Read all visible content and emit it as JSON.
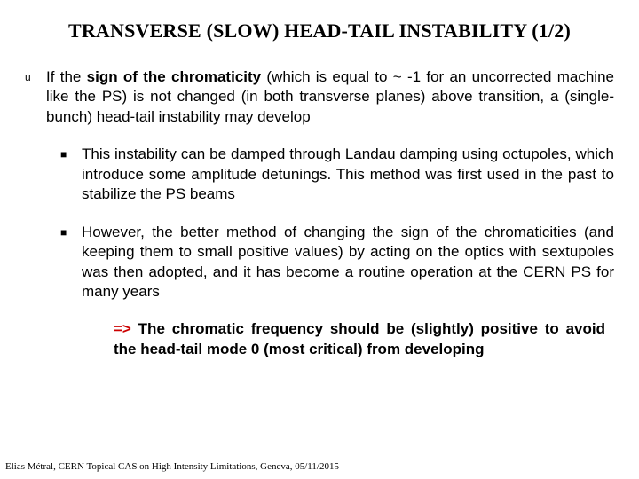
{
  "title": "TRANSVERSE (SLOW) HEAD-TAIL INSTABILITY (1/2)",
  "main": {
    "bullet_glyph": "u",
    "pre": "If the ",
    "bold": "sign of the chromaticity",
    "post": " (which is equal to ~ -1 for an uncorrected machine like the PS) is not changed (in both transverse planes) above transition, a (single-bunch) head-tail instability may develop"
  },
  "subs": {
    "bullet_glyph": "■",
    "item1": "This instability can be damped through Landau damping using octupoles, which introduce some amplitude detunings. This method was first used in the past to stabilize the PS beams",
    "item2": "However, the better method of changing the sign of the chromaticities (and keeping them to small positive values) by acting on the optics with sextupoles was then adopted, and it has become a routine operation at the CERN PS for many years"
  },
  "conclusion": {
    "arrow": "=>",
    "text": " The chromatic frequency should be (slightly) positive to avoid the head-tail mode 0 (most critical) from developing"
  },
  "footer": "Elias Métral, CERN Topical CAS on High Intensity Limitations, Geneva, 05/11/2015",
  "colors": {
    "text": "#000000",
    "accent": "#cc0000",
    "background": "#ffffff"
  },
  "fontsizes": {
    "title": 22,
    "body": 17,
    "footer": 11,
    "bullet_u": 12,
    "bullet_sq": 12
  }
}
